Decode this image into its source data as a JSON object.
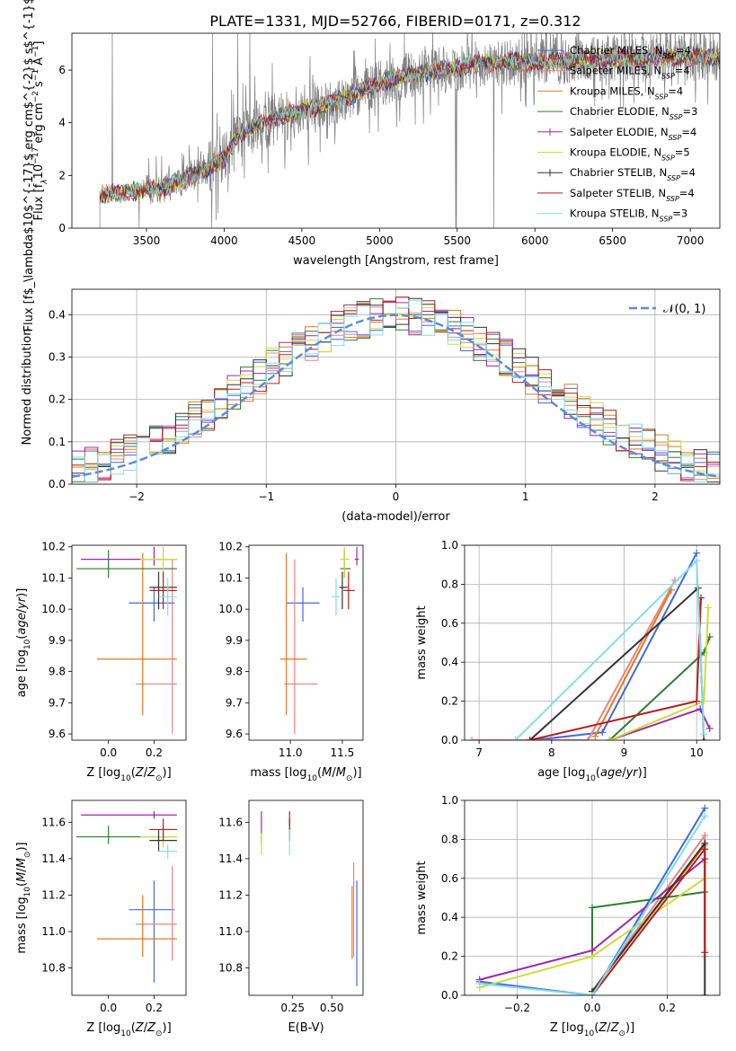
{
  "figure_title": "PLATE=1331, MJD=52766, FIBERID=0171, z=0.312",
  "model_colors": [
    "#4169e1",
    "#e98484",
    "#e8781c",
    "#2e7d32",
    "#9c27b0",
    "#cddc39",
    "#333333",
    "#b71c1c",
    "#80deea"
  ],
  "plot_colors": {
    "data_spectrum": "#808080",
    "normal_curve": "#5b8dd9",
    "grid": "#b0b0b0"
  },
  "chart_data": [
    {
      "id": "spectrum",
      "type": "line",
      "title": "PLATE=1331, MJD=52766, FIBERID=0171, z=0.312",
      "xlabel": "wavelength [Angstrom, rest frame]",
      "ylabel": "Flux [f$_\\lambda$10$^{-17}$ erg cm$^{-2}$ s$^{-1}$ A$^{-1}$]",
      "ylabel_parts": {
        "base": "Flux [f",
        "sub1": "λ",
        "mid1": "10",
        "sup1": "−17",
        "mid2": " erg cm",
        "sup2": "−2",
        "mid3": " s",
        "sup3": "−1",
        "mid4": " A",
        "sup4": "−1",
        "end": "]"
      },
      "xlim": [
        3020,
        7190
      ],
      "ylim": [
        0,
        7.4
      ],
      "xticks": [
        3500,
        4000,
        4500,
        5000,
        5500,
        6000,
        6500,
        7000
      ],
      "yticks": [
        0,
        2,
        4,
        6
      ],
      "legend_position": "top-right",
      "legend": [
        {
          "name": "Chabrier MILES",
          "nssp": "4"
        },
        {
          "name": "Salpeter MILES",
          "nssp": "4"
        },
        {
          "name": "Kroupa MILES",
          "nssp": "4"
        },
        {
          "name": "Chabrier ELODIE",
          "nssp": "3"
        },
        {
          "name": "Salpeter ELODIE",
          "nssp": "4"
        },
        {
          "name": "Kroupa ELODIE",
          "nssp": "5"
        },
        {
          "name": "Chabrier STELIB",
          "nssp": "4"
        },
        {
          "name": "Salpeter STELIB",
          "nssp": "4"
        },
        {
          "name": "Kroupa STELIB",
          "nssp": "3"
        }
      ],
      "data_start": 3200,
      "data_end": 7190,
      "continuum": [
        [
          3200,
          1.25
        ],
        [
          3400,
          1.4
        ],
        [
          3600,
          1.5
        ],
        [
          3800,
          2.0
        ],
        [
          4000,
          2.6
        ],
        [
          4100,
          3.6
        ],
        [
          4200,
          3.9
        ],
        [
          4400,
          4.3
        ],
        [
          4600,
          4.6
        ],
        [
          4800,
          5.0
        ],
        [
          5000,
          5.5
        ],
        [
          5200,
          5.8
        ],
        [
          5400,
          6.0
        ],
        [
          5600,
          6.2
        ],
        [
          5800,
          6.3
        ],
        [
          6000,
          6.3
        ],
        [
          6500,
          6.45
        ],
        [
          7000,
          6.5
        ],
        [
          7190,
          6.5
        ]
      ]
    },
    {
      "id": "residuals",
      "type": "histogram",
      "xlabel": "(data-model)/error",
      "ylabel": "Normed distribution",
      "xlim": [
        -2.5,
        2.5
      ],
      "ylim": [
        0,
        0.46
      ],
      "xticks": [
        -2,
        -1,
        0,
        1,
        2
      ],
      "yticks": [
        0.0,
        0.1,
        0.2,
        0.3,
        0.4
      ],
      "legend": "𝒩(0, 1)",
      "legend_position": "top-right",
      "bin_width": 0.1,
      "grid": true
    },
    {
      "id": "age_vs_Z",
      "type": "errorbar",
      "xlabel": "Z [log10(Z/Z⊙)]",
      "ylabel": "age  [log10(age/yr)]",
      "xlim": [
        -0.16,
        0.34
      ],
      "ylim": [
        9.58,
        10.205
      ],
      "xticks": [
        0.0,
        0.2
      ],
      "yticks": [
        9.6,
        9.7,
        9.8,
        9.9,
        10.0,
        10.1,
        10.2
      ],
      "points": [
        {
          "x": 0.2,
          "xerr_lo": 0.11,
          "xerr_hi": 0.09,
          "y": 10.02,
          "yerr_lo": 0.06,
          "yerr_hi": 0.05
        },
        {
          "x": 0.28,
          "xerr_lo": 0.16,
          "xerr_hi": 0.02,
          "y": 9.76,
          "yerr_lo": 0.16,
          "yerr_hi": 0.4
        },
        {
          "x": 0.15,
          "xerr_lo": 0.2,
          "xerr_hi": 0.15,
          "y": 9.84,
          "yerr_lo": 0.18,
          "yerr_hi": 0.34
        },
        {
          "x": 0.0,
          "xerr_lo": 0.14,
          "xerr_hi": 0.3,
          "y": 10.13,
          "yerr_lo": 0.03,
          "yerr_hi": 0.06
        },
        {
          "x": 0.2,
          "xerr_lo": 0.32,
          "xerr_hi": 0.1,
          "y": 10.16,
          "yerr_lo": 0.02,
          "yerr_hi": 0.04
        },
        {
          "x": 0.24,
          "xerr_lo": 0.1,
          "xerr_hi": 0.06,
          "y": 10.16,
          "yerr_lo": 0.06,
          "yerr_hi": 0.04
        },
        {
          "x": 0.22,
          "xerr_lo": 0.04,
          "xerr_hi": 0.08,
          "y": 10.07,
          "yerr_lo": 0.07,
          "yerr_hi": 0.05
        },
        {
          "x": 0.24,
          "xerr_lo": 0.06,
          "xerr_hi": 0.06,
          "y": 10.06,
          "yerr_lo": 0.06,
          "yerr_hi": 0.06
        },
        {
          "x": 0.26,
          "xerr_lo": 0.04,
          "xerr_hi": 0.04,
          "y": 10.04,
          "yerr_lo": 0.06,
          "yerr_hi": 0.06
        }
      ]
    },
    {
      "id": "age_vs_mass",
      "type": "errorbar",
      "xlabel": "mass [log10(M/M⊙)]",
      "xlim": [
        10.6,
        11.7
      ],
      "ylim": [
        9.58,
        10.205
      ],
      "xticks": [
        11.0,
        11.5
      ],
      "yticks": [
        9.6,
        9.7,
        9.8,
        9.9,
        10.0,
        10.1,
        10.2
      ],
      "points": [
        {
          "x": 11.12,
          "xerr_lo": 0.16,
          "xerr_hi": 0.16,
          "y": 10.02,
          "yerr_lo": 0.06,
          "yerr_hi": 0.05
        },
        {
          "x": 11.04,
          "xerr_lo": 0.1,
          "xerr_hi": 0.22,
          "y": 9.76,
          "yerr_lo": 0.16,
          "yerr_hi": 0.4
        },
        {
          "x": 10.96,
          "xerr_lo": 0.06,
          "xerr_hi": 0.2,
          "y": 9.84,
          "yerr_lo": 0.18,
          "yerr_hi": 0.34
        },
        {
          "x": 11.52,
          "xerr_lo": 0.04,
          "xerr_hi": 0.06,
          "y": 10.13,
          "yerr_lo": 0.03,
          "yerr_hi": 0.06
        },
        {
          "x": 11.64,
          "xerr_lo": 0.02,
          "xerr_hi": 0.02,
          "y": 10.16,
          "yerr_lo": 0.02,
          "yerr_hi": 0.04
        },
        {
          "x": 11.52,
          "xerr_lo": 0.04,
          "xerr_hi": 0.05,
          "y": 10.16,
          "yerr_lo": 0.06,
          "yerr_hi": 0.04
        },
        {
          "x": 11.5,
          "xerr_lo": 0.03,
          "xerr_hi": 0.05,
          "y": 10.07,
          "yerr_lo": 0.07,
          "yerr_hi": 0.05
        },
        {
          "x": 11.56,
          "xerr_lo": 0.05,
          "xerr_hi": 0.06,
          "y": 10.06,
          "yerr_lo": 0.06,
          "yerr_hi": 0.06
        },
        {
          "x": 11.44,
          "xerr_lo": 0.04,
          "xerr_hi": 0.04,
          "y": 10.04,
          "yerr_lo": 0.06,
          "yerr_hi": 0.06
        }
      ]
    },
    {
      "id": "weight_vs_age",
      "type": "line",
      "xlabel": "age  [log10(age/yr)]",
      "ylabel": "mass weight",
      "xlim": [
        6.8,
        10.32
      ],
      "ylim": [
        0,
        1.0
      ],
      "xticks": [
        7,
        8,
        9,
        10
      ],
      "yticks": [
        0.0,
        0.2,
        0.4,
        0.6,
        0.8,
        1.0
      ],
      "series": [
        {
          "x": [
            7.75,
            8.7,
            10.0
          ],
          "y": [
            0.0,
            0.04,
            0.96
          ]
        },
        {
          "x": [
            6.9,
            8.5,
            9.7
          ],
          "y": [
            0.0,
            0.0,
            0.82
          ]
        },
        {
          "x": [
            8.6,
            9.65
          ],
          "y": [
            0.02,
            0.77
          ]
        },
        {
          "x": [
            8.8,
            10.1,
            10.18
          ],
          "y": [
            0.0,
            0.45,
            0.53
          ]
        },
        {
          "x": [
            8.8,
            10.05,
            10.18
          ],
          "y": [
            0.0,
            0.16,
            0.06
          ]
        },
        {
          "x": [
            8.8,
            10.1,
            10.16
          ],
          "y": [
            0.0,
            0.2,
            0.68
          ]
        },
        {
          "x": [
            7.7,
            10.02,
            10.1
          ],
          "y": [
            0.0,
            0.78,
            0.0
          ]
        },
        {
          "x": [
            7.7,
            10.0,
            10.06
          ],
          "y": [
            0.0,
            0.2,
            0.73
          ]
        },
        {
          "x": [
            7.5,
            10.0,
            10.1
          ],
          "y": [
            0.0,
            0.92,
            0.03
          ]
        }
      ]
    },
    {
      "id": "mass_vs_Z",
      "type": "errorbar",
      "xlabel": "Z [log10(Z/Z⊙)]",
      "ylabel": "mass [log10(M/M⊙)]",
      "xlim": [
        -0.16,
        0.34
      ],
      "ylim": [
        10.65,
        11.72
      ],
      "xticks": [
        0.0,
        0.2
      ],
      "yticks": [
        10.8,
        11.0,
        11.2,
        11.4,
        11.6
      ],
      "points": [
        {
          "x": 0.2,
          "xerr_lo": 0.11,
          "xerr_hi": 0.09,
          "y": 11.12,
          "yerr_lo": 0.4,
          "yerr_hi": 0.16
        },
        {
          "x": 0.28,
          "xerr_lo": 0.16,
          "xerr_hi": 0.02,
          "y": 11.04,
          "yerr_lo": 0.2,
          "yerr_hi": 0.32
        },
        {
          "x": 0.15,
          "xerr_lo": 0.2,
          "xerr_hi": 0.15,
          "y": 10.96,
          "yerr_lo": 0.1,
          "yerr_hi": 0.24
        },
        {
          "x": 0.0,
          "xerr_lo": 0.14,
          "xerr_hi": 0.3,
          "y": 11.52,
          "yerr_lo": 0.04,
          "yerr_hi": 0.06
        },
        {
          "x": 0.2,
          "xerr_lo": 0.32,
          "xerr_hi": 0.1,
          "y": 11.64,
          "yerr_lo": 0.02,
          "yerr_hi": 0.02
        },
        {
          "x": 0.24,
          "xerr_lo": 0.1,
          "xerr_hi": 0.06,
          "y": 11.52,
          "yerr_lo": 0.06,
          "yerr_hi": 0.06
        },
        {
          "x": 0.22,
          "xerr_lo": 0.04,
          "xerr_hi": 0.08,
          "y": 11.5,
          "yerr_lo": 0.06,
          "yerr_hi": 0.06
        },
        {
          "x": 0.24,
          "xerr_lo": 0.06,
          "xerr_hi": 0.06,
          "y": 11.56,
          "yerr_lo": 0.06,
          "yerr_hi": 0.06
        },
        {
          "x": 0.26,
          "xerr_lo": 0.04,
          "xerr_hi": 0.04,
          "y": 11.44,
          "yerr_lo": 0.04,
          "yerr_hi": 0.04
        }
      ]
    },
    {
      "id": "mass_vs_ebv",
      "type": "errorbar",
      "xlabel": "E(B-V)",
      "xlim": [
        -0.03,
        0.7
      ],
      "ylim": [
        10.65,
        11.72
      ],
      "xticks": [
        0.25,
        0.5
      ],
      "yticks": [
        10.8,
        11.0,
        11.2,
        11.4,
        11.6
      ],
      "points": [
        {
          "x": 0.66,
          "xerr_lo": 0.0,
          "xerr_hi": 0.0,
          "y": 11.0,
          "yerr_lo": 0.3,
          "yerr_hi": 0.28
        },
        {
          "x": 0.64,
          "xerr_lo": 0.0,
          "xerr_hi": 0.0,
          "y": 11.2,
          "yerr_lo": 0.34,
          "yerr_hi": 0.18
        },
        {
          "x": 0.63,
          "xerr_lo": 0.0,
          "xerr_hi": 0.0,
          "y": 11.05,
          "yerr_lo": 0.2,
          "yerr_hi": 0.2
        },
        {
          "x": 0.05,
          "xerr_lo": 0.0,
          "xerr_hi": 0.0,
          "y": 11.52,
          "yerr_lo": 0.04,
          "yerr_hi": 0.04
        },
        {
          "x": 0.05,
          "xerr_lo": 0.0,
          "xerr_hi": 0.0,
          "y": 11.6,
          "yerr_lo": 0.04,
          "yerr_hi": 0.06
        },
        {
          "x": 0.05,
          "xerr_lo": 0.0,
          "xerr_hi": 0.0,
          "y": 11.5,
          "yerr_lo": 0.08,
          "yerr_hi": 0.04
        },
        {
          "x": 0.23,
          "xerr_lo": 0.0,
          "xerr_hi": 0.0,
          "y": 11.56,
          "yerr_lo": 0.06,
          "yerr_hi": 0.06
        },
        {
          "x": 0.23,
          "xerr_lo": 0.0,
          "xerr_hi": 0.0,
          "y": 11.62,
          "yerr_lo": 0.04,
          "yerr_hi": 0.04
        },
        {
          "x": 0.23,
          "xerr_lo": 0.0,
          "xerr_hi": 0.0,
          "y": 11.5,
          "yerr_lo": 0.08,
          "yerr_hi": 0.06
        }
      ]
    },
    {
      "id": "weight_vs_Z",
      "type": "line",
      "xlabel": "Z [log10(Z/Z⊙)]",
      "ylabel": "mass weight",
      "xlim": [
        -0.34,
        0.34
      ],
      "ylim": [
        0,
        1.0
      ],
      "xticks": [
        -0.2,
        0.0,
        0.2
      ],
      "yticks": [
        0.0,
        0.2,
        0.4,
        0.6,
        0.8,
        1.0
      ],
      "series": [
        {
          "x": [
            -0.3,
            0.0,
            0.3
          ],
          "y": [
            0.07,
            0.0,
            0.96
          ]
        },
        {
          "x": [
            0.0,
            0.3,
            0.3
          ],
          "y": [
            0.02,
            0.82,
            0.2
          ]
        },
        {
          "x": [
            0.0,
            0.3
          ],
          "y": [
            0.02,
            0.77
          ]
        },
        {
          "x": [
            0.0,
            0.0,
            0.3
          ],
          "y": [
            0.2,
            0.45,
            0.53
          ]
        },
        {
          "x": [
            -0.3,
            0.0,
            0.3
          ],
          "y": [
            0.08,
            0.23,
            0.7
          ]
        },
        {
          "x": [
            -0.3,
            0.0,
            0.3,
            0.3
          ],
          "y": [
            0.04,
            0.2,
            0.6,
            0.68
          ]
        },
        {
          "x": [
            0.0,
            0.3,
            0.3
          ],
          "y": [
            0.02,
            0.78,
            0.0
          ]
        },
        {
          "x": [
            0.0,
            0.3,
            0.3
          ],
          "y": [
            0.0,
            0.75,
            0.22
          ]
        },
        {
          "x": [
            -0.3,
            0.0,
            0.3
          ],
          "y": [
            0.06,
            0.0,
            0.92
          ]
        }
      ]
    }
  ]
}
